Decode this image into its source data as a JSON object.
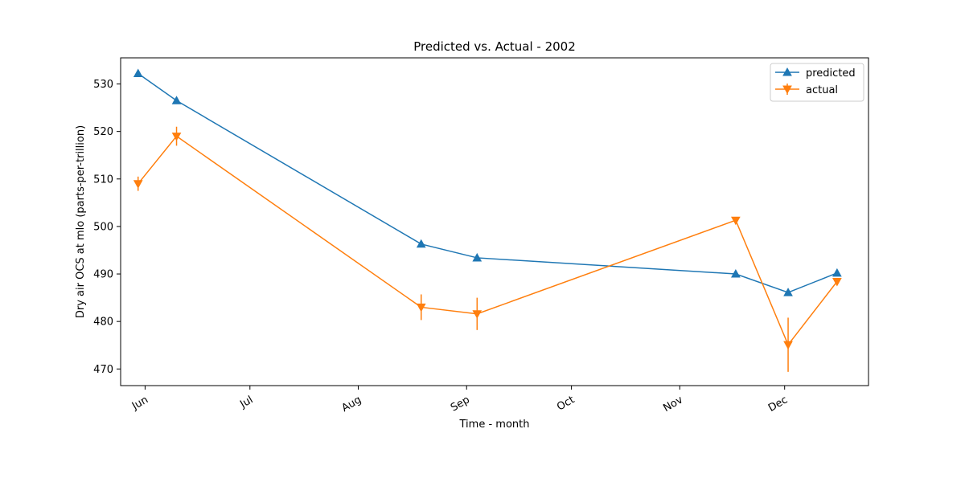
{
  "chart_data": {
    "type": "line",
    "title": "Predicted vs. Actual - 2002",
    "xlabel": "Time - month",
    "ylabel": "Dry air OCS at mlo (parts-per-trillion)",
    "x_ticks": [
      {
        "date": "2002-06-01",
        "label": "Jun"
      },
      {
        "date": "2002-07-01",
        "label": "Jul"
      },
      {
        "date": "2002-08-01",
        "label": "Aug"
      },
      {
        "date": "2002-09-01",
        "label": "Sep"
      },
      {
        "date": "2002-10-01",
        "label": "Oct"
      },
      {
        "date": "2002-11-01",
        "label": "Nov"
      },
      {
        "date": "2002-12-01",
        "label": "Dec"
      }
    ],
    "xlim": [
      "2002-05-25",
      "2002-12-25"
    ],
    "y_ticks": [
      470,
      480,
      490,
      500,
      510,
      520,
      530
    ],
    "ylim": [
      466.5,
      535.5
    ],
    "legend_position": "upper right",
    "series": [
      {
        "name": "predicted",
        "color": "#1f77b4",
        "marker": "triangle-up",
        "points": [
          {
            "x": "2002-05-30",
            "y": 532.2
          },
          {
            "x": "2002-06-10",
            "y": 526.5
          },
          {
            "x": "2002-08-19",
            "y": 496.3
          },
          {
            "x": "2002-09-04",
            "y": 493.4
          },
          {
            "x": "2002-11-17",
            "y": 490.0
          },
          {
            "x": "2002-12-02",
            "y": 486.1
          },
          {
            "x": "2002-12-16",
            "y": 490.2
          }
        ]
      },
      {
        "name": "actual",
        "color": "#ff7f0e",
        "marker": "triangle-down",
        "points": [
          {
            "x": "2002-05-30",
            "y": 509.0,
            "err": 1.5
          },
          {
            "x": "2002-06-10",
            "y": 519.0,
            "err": 2.0
          },
          {
            "x": "2002-08-19",
            "y": 483.0,
            "err": 2.7
          },
          {
            "x": "2002-09-04",
            "y": 481.6,
            "err": 3.4
          },
          {
            "x": "2002-11-17",
            "y": 501.3,
            "err": 0.6
          },
          {
            "x": "2002-12-02",
            "y": 475.1,
            "err": 5.7
          },
          {
            "x": "2002-12-16",
            "y": 488.4,
            "err": 0.6
          }
        ]
      }
    ]
  }
}
